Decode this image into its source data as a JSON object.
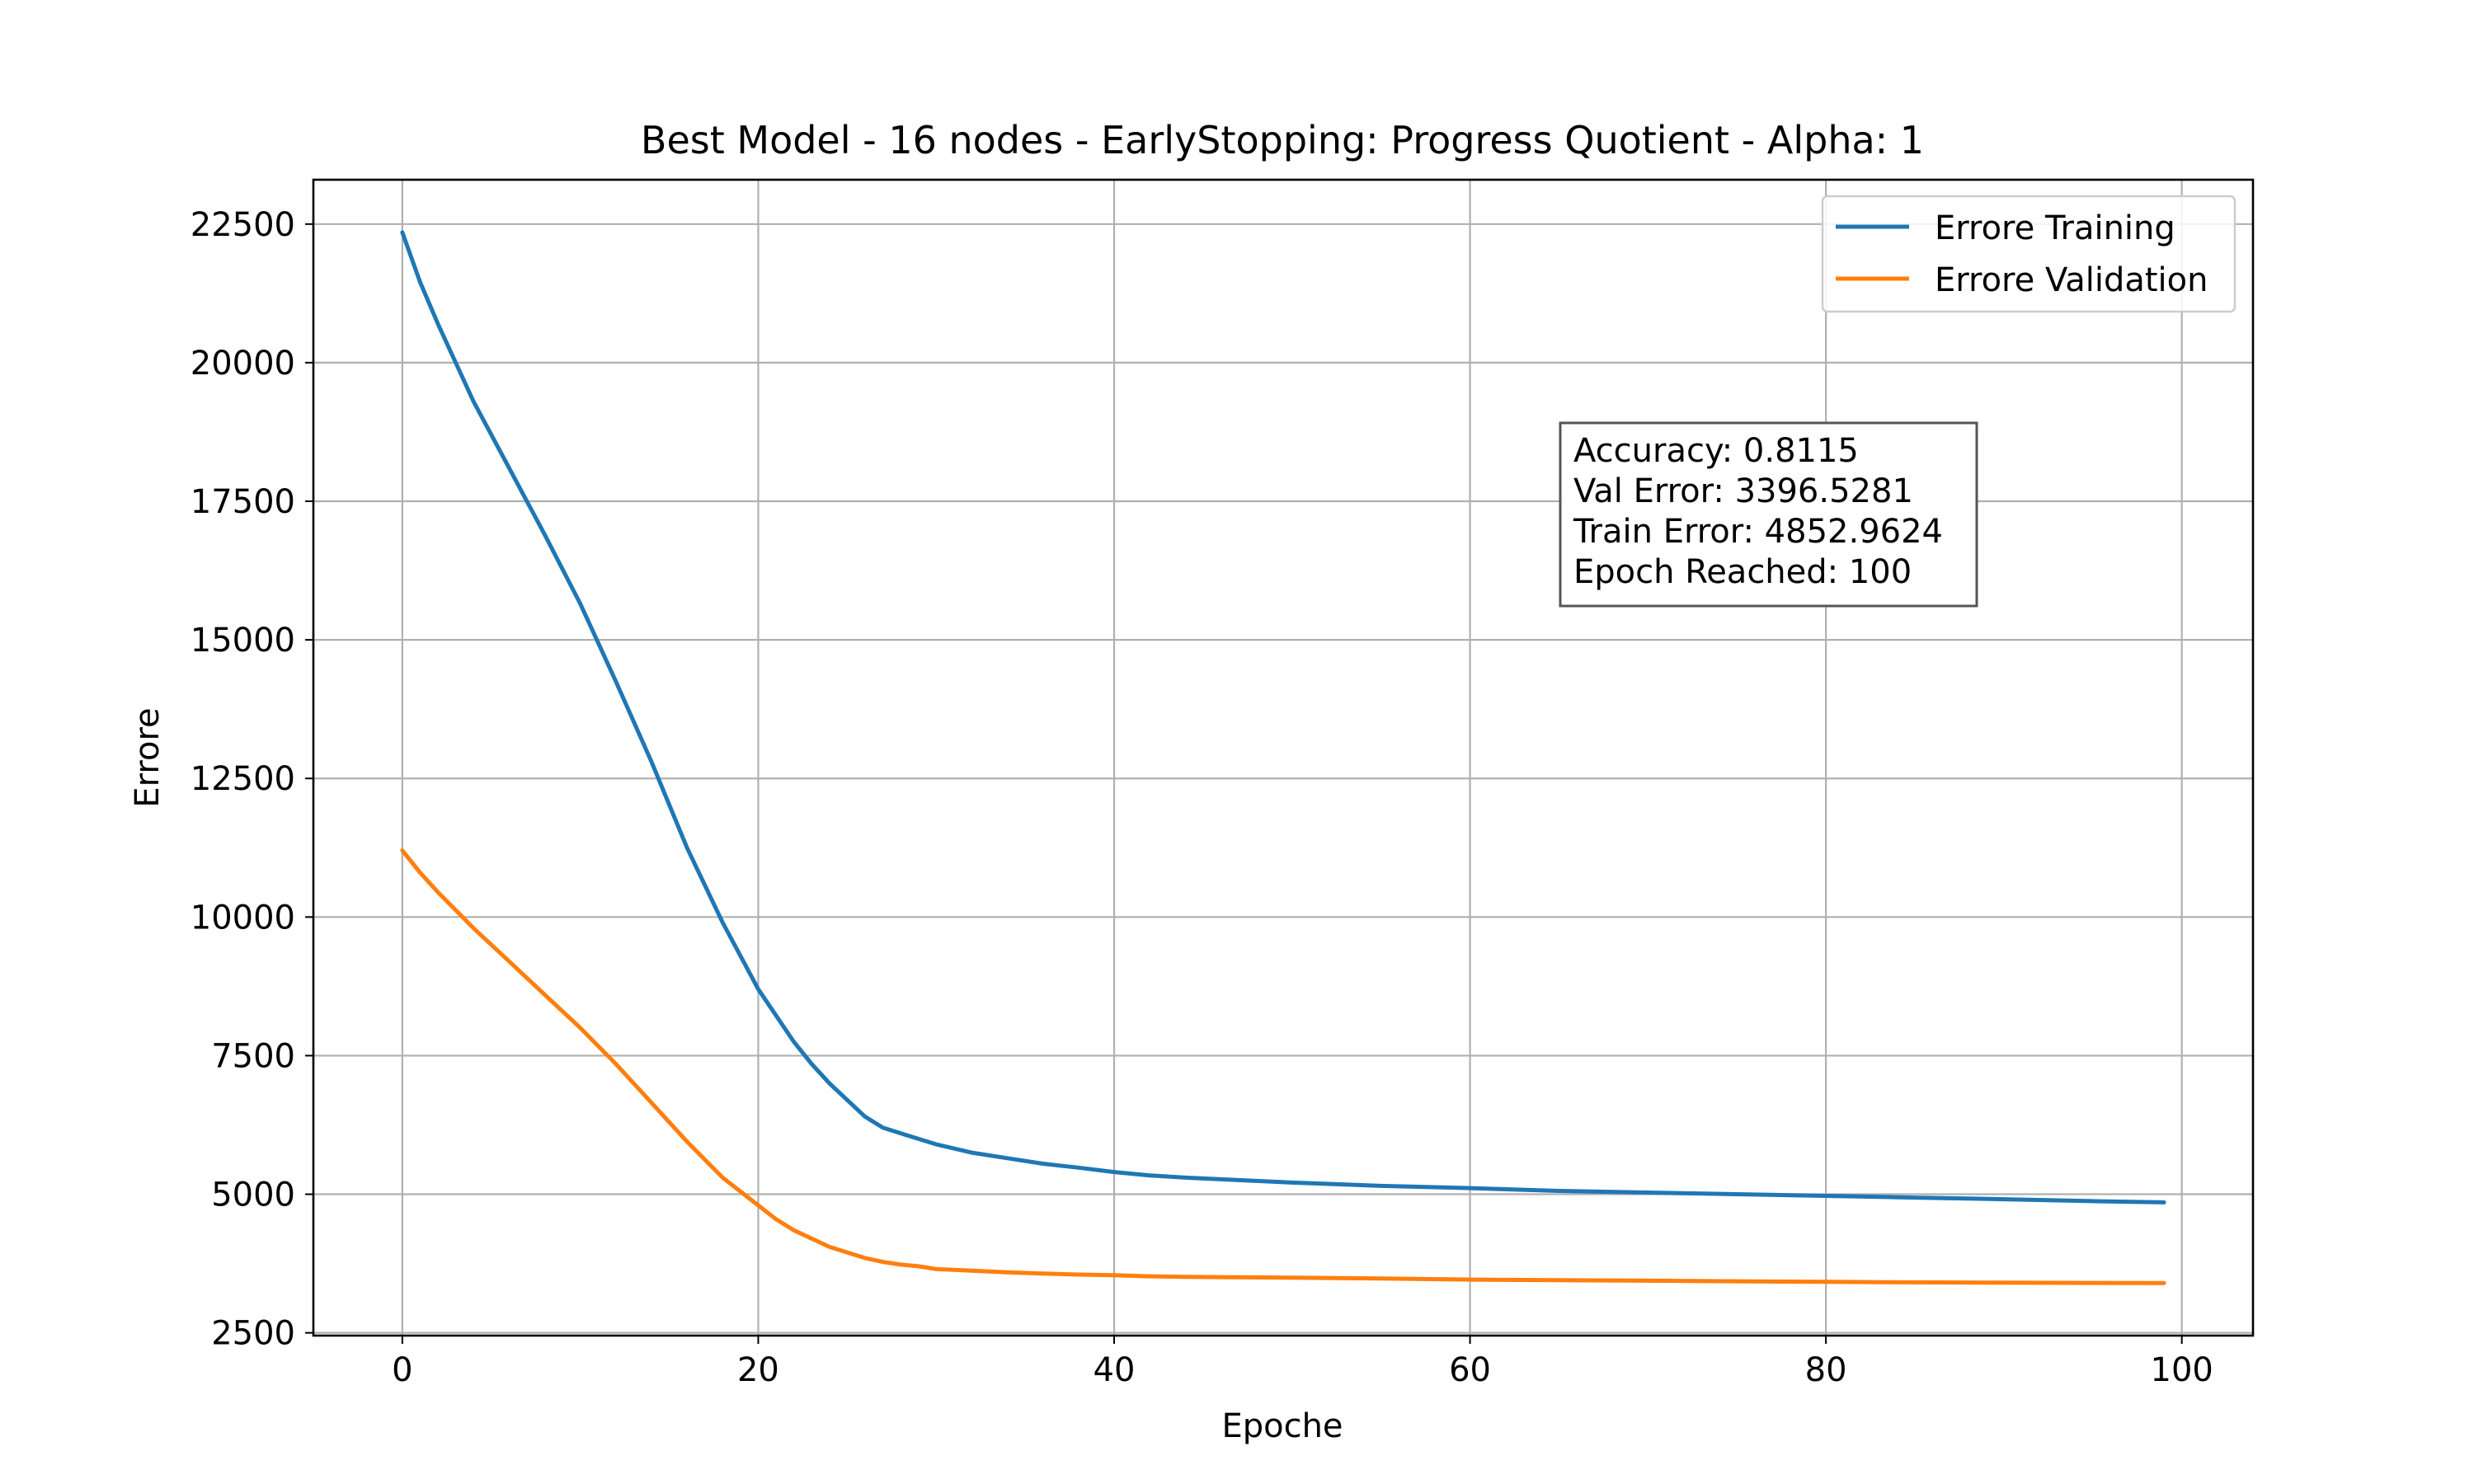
{
  "chart_data": {
    "type": "line",
    "title": "Best Model - 16 nodes - EarlyStopping: Progress Quotient - Alpha: 1",
    "xlabel": "Epoche",
    "ylabel": "Errore",
    "xlim": [
      -5,
      104
    ],
    "ylim": [
      2450,
      23300
    ],
    "xticks": [
      0,
      20,
      40,
      60,
      80,
      100
    ],
    "xtick_labels": [
      "0",
      "20",
      "40",
      "60",
      "80",
      "100"
    ],
    "yticks": [
      2500,
      5000,
      7500,
      10000,
      12500,
      15000,
      17500,
      20000,
      22500
    ],
    "ytick_labels": [
      "2500",
      "5000",
      "7500",
      "10000",
      "12500",
      "15000",
      "17500",
      "20000",
      "22500"
    ],
    "grid": true,
    "legend_position": "upper right",
    "annotation": [
      "Accuracy: 0.8115",
      "Val Error: 3396.5281",
      "Train Error: 4852.9624",
      "Epoch Reached: 100"
    ],
    "series": [
      {
        "name": "Errore Training",
        "color": "#1f77b4",
        "x": [
          0,
          1,
          2,
          4,
          6,
          8,
          10,
          12,
          14,
          16,
          18,
          20,
          22,
          23,
          24,
          25,
          26,
          27,
          28,
          30,
          32,
          34,
          36,
          38,
          40,
          42,
          44,
          46,
          48,
          50,
          55,
          60,
          65,
          70,
          75,
          80,
          85,
          90,
          95,
          99
        ],
        "values": [
          22350,
          21450,
          20700,
          19300,
          18100,
          16900,
          15650,
          14250,
          12800,
          11250,
          9900,
          8700,
          7750,
          7350,
          7000,
          6700,
          6400,
          6200,
          6100,
          5900,
          5750,
          5650,
          5550,
          5480,
          5400,
          5340,
          5300,
          5270,
          5240,
          5210,
          5150,
          5110,
          5060,
          5030,
          5000,
          4970,
          4940,
          4910,
          4875,
          4853
        ]
      },
      {
        "name": "Errore Validation",
        "color": "#ff7f0e",
        "x": [
          0,
          1,
          2,
          4,
          6,
          8,
          10,
          12,
          14,
          16,
          18,
          20,
          21,
          22,
          23,
          24,
          25,
          26,
          27,
          28,
          29,
          30,
          32,
          34,
          36,
          38,
          40,
          42,
          44,
          46,
          48,
          50,
          55,
          60,
          65,
          70,
          75,
          80,
          85,
          90,
          95,
          99
        ],
        "values": [
          11200,
          10800,
          10450,
          9800,
          9200,
          8600,
          8000,
          7350,
          6650,
          5950,
          5300,
          4800,
          4550,
          4350,
          4200,
          4050,
          3950,
          3850,
          3780,
          3730,
          3700,
          3650,
          3620,
          3590,
          3570,
          3550,
          3540,
          3520,
          3510,
          3505,
          3500,
          3495,
          3480,
          3460,
          3450,
          3440,
          3430,
          3420,
          3410,
          3405,
          3400,
          3397
        ]
      }
    ]
  }
}
